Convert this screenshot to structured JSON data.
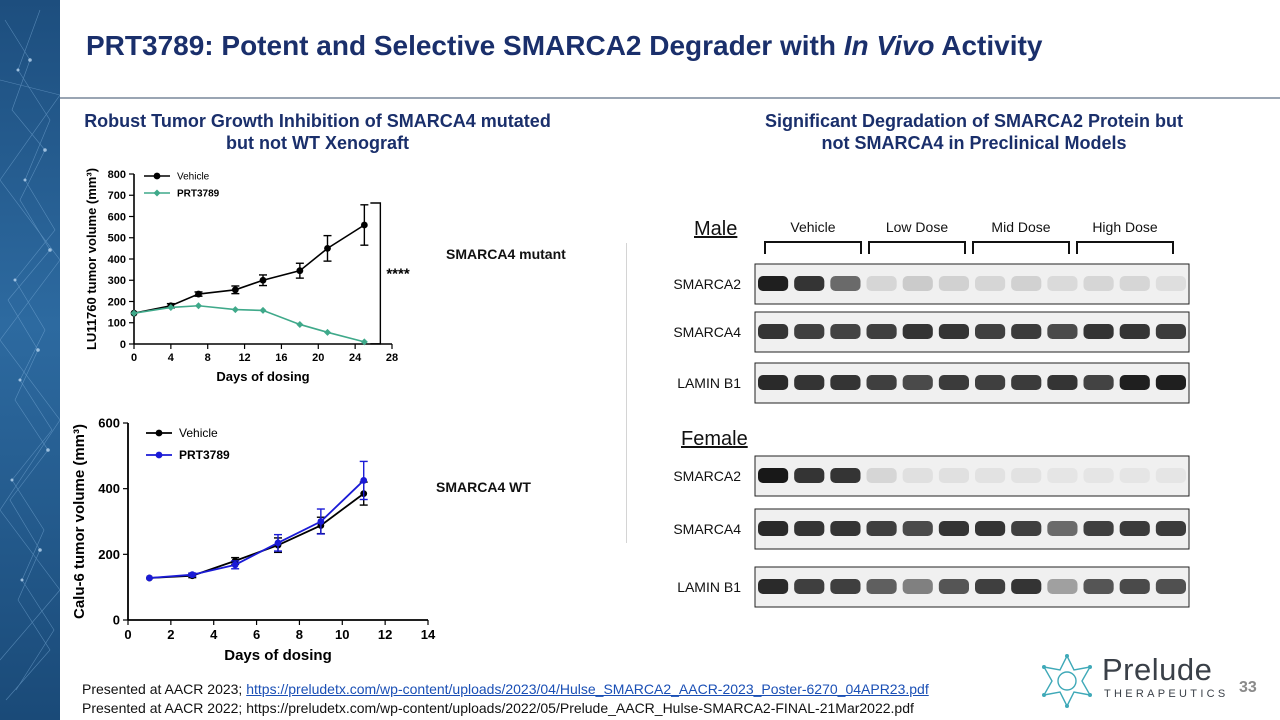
{
  "title": {
    "main": "PRT3789: Potent and Selective SMARCA2 Degrader with ",
    "italic": "In Vivo",
    "tail": " Activity"
  },
  "left_heading": {
    "line1": "Robust Tumor Growth Inhibition of SMARCA4 mutated",
    "line2": "but not WT Xenograft"
  },
  "right_heading": {
    "line1": "Significant Degradation of SMARCA2 Protein but",
    "line2": "not SMARCA4 in Preclinical Models"
  },
  "labels": {
    "mutant": "SMARCA4 mutant",
    "wt": "SMARCA4 WT"
  },
  "colors": {
    "title": "#1a2f6b",
    "vehicle": "#000000",
    "prt_top": "#3fa98a",
    "prt_bottom": "#1a1ad6"
  },
  "chart_data": [
    {
      "type": "line",
      "xlabel": "Days of dosing",
      "ylabel": "LU11760 tumor volume (mm³)",
      "xlim": [
        0,
        28
      ],
      "ylim": [
        0,
        800
      ],
      "xticks": [
        0,
        4,
        8,
        12,
        16,
        20,
        24,
        28
      ],
      "yticks": [
        0,
        100,
        200,
        300,
        400,
        500,
        600,
        700,
        800
      ],
      "legend_position": "top-left",
      "annotation": "****",
      "series": [
        {
          "name": "Vehicle",
          "color": "#000000",
          "x": [
            0,
            4,
            7,
            11,
            14,
            18,
            21,
            25
          ],
          "y": [
            145,
            180,
            235,
            255,
            300,
            345,
            450,
            560
          ],
          "err": [
            0,
            10,
            10,
            18,
            25,
            35,
            60,
            95
          ]
        },
        {
          "name": "PRT3789",
          "color": "#3fa98a",
          "x": [
            0,
            4,
            7,
            11,
            14,
            18,
            21,
            25
          ],
          "y": [
            145,
            172,
            180,
            162,
            158,
            92,
            55,
            10
          ],
          "err": [
            0,
            0,
            0,
            0,
            0,
            0,
            0,
            0
          ]
        }
      ]
    },
    {
      "type": "line",
      "xlabel": "Days of dosing",
      "ylabel": "Calu-6 tumor volume (mm³)",
      "xlim": [
        0,
        14
      ],
      "ylim": [
        0,
        600
      ],
      "xticks": [
        0,
        2,
        4,
        6,
        8,
        10,
        12,
        14
      ],
      "yticks": [
        0,
        200,
        400,
        600
      ],
      "legend_position": "top-left",
      "series": [
        {
          "name": "Vehicle",
          "color": "#000000",
          "x": [
            1,
            3,
            5,
            7,
            9,
            11
          ],
          "y": [
            128,
            135,
            180,
            228,
            288,
            385
          ],
          "err": [
            0,
            6,
            10,
            22,
            25,
            35
          ]
        },
        {
          "name": "PRT3789",
          "color": "#1a1ad6",
          "x": [
            1,
            3,
            5,
            7,
            9,
            11
          ],
          "y": [
            128,
            138,
            168,
            235,
            300,
            425
          ],
          "err": [
            0,
            5,
            12,
            25,
            38,
            58
          ]
        }
      ]
    }
  ],
  "blot": {
    "dose_groups": [
      "Vehicle",
      "Low Dose",
      "Mid Dose",
      "High Dose"
    ],
    "panels": [
      {
        "title": "Male",
        "rows": [
          {
            "label": "SMARCA2",
            "intensity": [
              0.95,
              0.85,
              0.6,
              0.1,
              0.15,
              0.12,
              0.1,
              0.12,
              0.08,
              0.1,
              0.1,
              0.06
            ]
          },
          {
            "label": "SMARCA4",
            "intensity": [
              0.85,
              0.8,
              0.78,
              0.8,
              0.85,
              0.85,
              0.8,
              0.82,
              0.75,
              0.85,
              0.85,
              0.82
            ]
          },
          {
            "label": "LAMIN B1",
            "intensity": [
              0.9,
              0.85,
              0.85,
              0.8,
              0.75,
              0.82,
              0.8,
              0.82,
              0.85,
              0.78,
              0.95,
              0.95
            ]
          }
        ]
      },
      {
        "title": "Female",
        "rows": [
          {
            "label": "SMARCA2",
            "intensity": [
              0.98,
              0.85,
              0.85,
              0.1,
              0.05,
              0.05,
              0.04,
              0.04,
              0.03,
              0.03,
              0.03,
              0.03
            ]
          },
          {
            "label": "SMARCA4",
            "intensity": [
              0.9,
              0.85,
              0.85,
              0.8,
              0.75,
              0.85,
              0.85,
              0.8,
              0.6,
              0.8,
              0.82,
              0.82
            ]
          },
          {
            "label": "LAMIN B1",
            "intensity": [
              0.9,
              0.8,
              0.8,
              0.65,
              0.5,
              0.7,
              0.8,
              0.85,
              0.35,
              0.7,
              0.75,
              0.72
            ]
          }
        ]
      }
    ]
  },
  "footer": {
    "line1_prefix": "Presented at AACR 2023; ",
    "line1_link": "https://preludetx.com/wp-content/uploads/2023/04/Hulse_SMARCA2_AACR-2023_Poster-6270_04APR23.pdf",
    "line2": "Presented at AACR 2022; https://preludetx.com/wp-content/uploads/2022/05/Prelude_AACR_Hulse-SMARCA2-FINAL-21Mar2022.pdf"
  },
  "logo": {
    "word": "Prelude",
    "sub": "THERAPEUTICS"
  },
  "page_number": "33"
}
